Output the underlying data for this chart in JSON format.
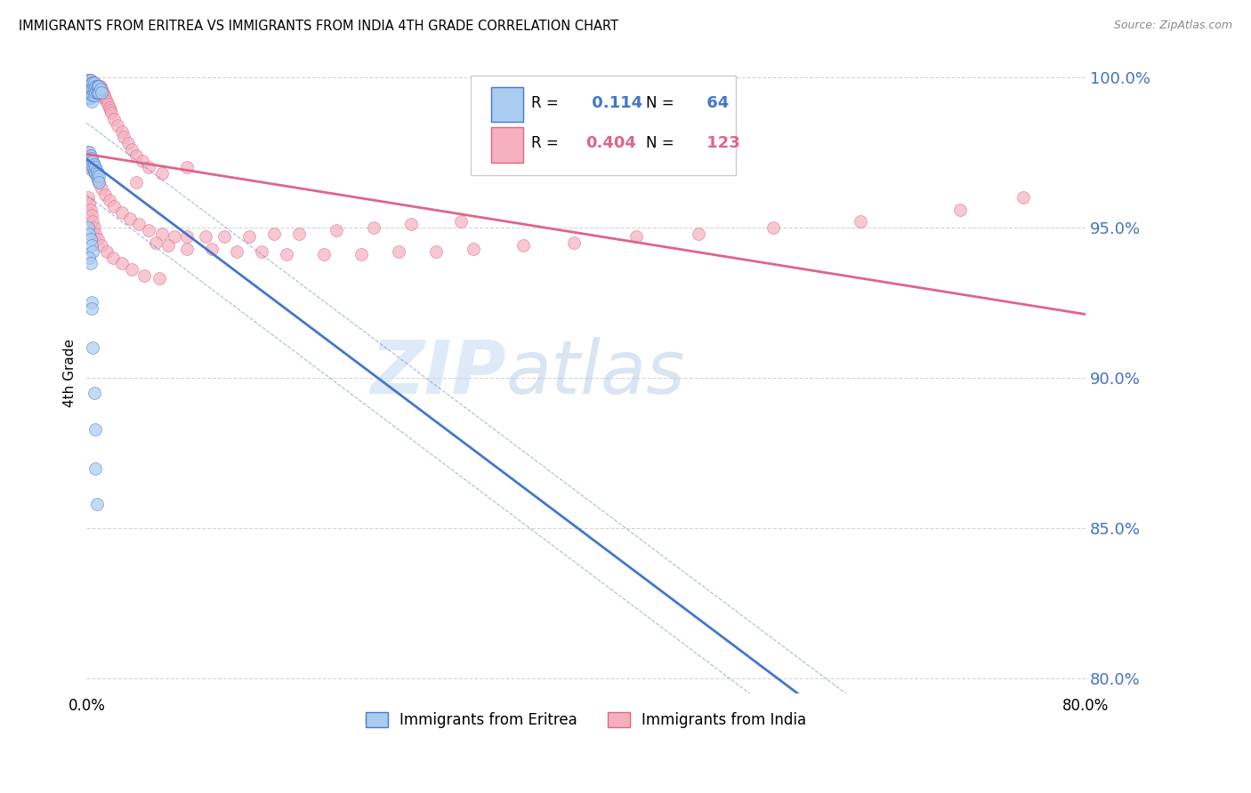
{
  "title": "IMMIGRANTS FROM ERITREA VS IMMIGRANTS FROM INDIA 4TH GRADE CORRELATION CHART",
  "source": "Source: ZipAtlas.com",
  "ylabel": "4th Grade",
  "xlim": [
    0.0,
    0.8
  ],
  "ylim": [
    0.795,
    1.008
  ],
  "xticks": [
    0.0,
    0.1,
    0.2,
    0.3,
    0.4,
    0.5,
    0.6,
    0.7,
    0.8
  ],
  "yticks": [
    0.8,
    0.85,
    0.9,
    0.95,
    1.0
  ],
  "ytick_labels": [
    "80.0%",
    "85.0%",
    "90.0%",
    "95.0%",
    "100.0%"
  ],
  "xtick_labels": [
    "0.0%",
    "",
    "",
    "",
    "",
    "",
    "",
    "",
    "80.0%"
  ],
  "series1_color": "#aaccf0",
  "series2_color": "#f5b0c0",
  "trendline1_color": "#4477cc",
  "trendline2_color": "#dd6688",
  "R1": 0.114,
  "N1": 64,
  "R2": 0.404,
  "N2": 123,
  "watermark_zip": "ZIP",
  "watermark_atlas": "atlas",
  "series1_name": "Immigrants from Eritrea",
  "series2_name": "Immigrants from India",
  "background_color": "#ffffff",
  "grid_color": "#cccccc",
  "eritrea_x": [
    0.001,
    0.001,
    0.002,
    0.002,
    0.002,
    0.002,
    0.003,
    0.003,
    0.003,
    0.003,
    0.004,
    0.004,
    0.004,
    0.004,
    0.005,
    0.005,
    0.005,
    0.006,
    0.006,
    0.006,
    0.007,
    0.007,
    0.008,
    0.008,
    0.009,
    0.009,
    0.01,
    0.01,
    0.011,
    0.012,
    0.001,
    0.001,
    0.002,
    0.002,
    0.003,
    0.003,
    0.004,
    0.004,
    0.005,
    0.005,
    0.006,
    0.006,
    0.007,
    0.007,
    0.008,
    0.008,
    0.009,
    0.009,
    0.01,
    0.01,
    0.001,
    0.002,
    0.003,
    0.004,
    0.005,
    0.002,
    0.003,
    0.004,
    0.004,
    0.005,
    0.006,
    0.007,
    0.007,
    0.008
  ],
  "eritrea_y": [
    0.998,
    0.996,
    0.999,
    0.997,
    0.995,
    0.993,
    0.999,
    0.997,
    0.995,
    0.993,
    0.998,
    0.996,
    0.994,
    0.992,
    0.998,
    0.996,
    0.994,
    0.998,
    0.996,
    0.994,
    0.997,
    0.995,
    0.997,
    0.995,
    0.997,
    0.995,
    0.997,
    0.995,
    0.996,
    0.995,
    0.972,
    0.97,
    0.975,
    0.973,
    0.974,
    0.972,
    0.973,
    0.971,
    0.972,
    0.97,
    0.971,
    0.969,
    0.97,
    0.968,
    0.969,
    0.967,
    0.968,
    0.966,
    0.967,
    0.965,
    0.95,
    0.948,
    0.946,
    0.944,
    0.942,
    0.94,
    0.938,
    0.925,
    0.923,
    0.91,
    0.895,
    0.883,
    0.87,
    0.858
  ],
  "india_x": [
    0.001,
    0.001,
    0.001,
    0.002,
    0.002,
    0.002,
    0.002,
    0.003,
    0.003,
    0.003,
    0.003,
    0.004,
    0.004,
    0.004,
    0.005,
    0.005,
    0.005,
    0.006,
    0.006,
    0.006,
    0.007,
    0.007,
    0.008,
    0.008,
    0.009,
    0.009,
    0.01,
    0.01,
    0.011,
    0.011,
    0.012,
    0.012,
    0.013,
    0.013,
    0.014,
    0.015,
    0.016,
    0.017,
    0.018,
    0.019,
    0.02,
    0.022,
    0.025,
    0.028,
    0.03,
    0.033,
    0.036,
    0.04,
    0.045,
    0.05,
    0.001,
    0.001,
    0.002,
    0.002,
    0.003,
    0.003,
    0.004,
    0.004,
    0.005,
    0.005,
    0.006,
    0.007,
    0.008,
    0.009,
    0.01,
    0.012,
    0.015,
    0.018,
    0.022,
    0.028,
    0.035,
    0.042,
    0.05,
    0.06,
    0.07,
    0.08,
    0.095,
    0.11,
    0.13,
    0.15,
    0.17,
    0.2,
    0.23,
    0.26,
    0.3,
    0.001,
    0.002,
    0.003,
    0.004,
    0.005,
    0.006,
    0.007,
    0.009,
    0.012,
    0.016,
    0.021,
    0.028,
    0.036,
    0.046,
    0.058,
    0.055,
    0.065,
    0.08,
    0.1,
    0.12,
    0.14,
    0.16,
    0.19,
    0.22,
    0.25,
    0.28,
    0.31,
    0.35,
    0.39,
    0.44,
    0.49,
    0.55,
    0.62,
    0.7,
    0.75,
    0.04,
    0.06,
    0.08
  ],
  "india_y": [
    0.999,
    0.998,
    0.997,
    0.999,
    0.998,
    0.997,
    0.996,
    0.999,
    0.998,
    0.997,
    0.996,
    0.998,
    0.997,
    0.996,
    0.998,
    0.997,
    0.996,
    0.998,
    0.997,
    0.996,
    0.997,
    0.996,
    0.997,
    0.996,
    0.997,
    0.996,
    0.997,
    0.995,
    0.997,
    0.995,
    0.996,
    0.994,
    0.995,
    0.993,
    0.994,
    0.993,
    0.992,
    0.991,
    0.99,
    0.989,
    0.988,
    0.986,
    0.984,
    0.982,
    0.98,
    0.978,
    0.976,
    0.974,
    0.972,
    0.97,
    0.975,
    0.973,
    0.974,
    0.972,
    0.973,
    0.971,
    0.972,
    0.97,
    0.971,
    0.969,
    0.97,
    0.968,
    0.967,
    0.966,
    0.965,
    0.963,
    0.961,
    0.959,
    0.957,
    0.955,
    0.953,
    0.951,
    0.949,
    0.948,
    0.947,
    0.947,
    0.947,
    0.947,
    0.947,
    0.948,
    0.948,
    0.949,
    0.95,
    0.951,
    0.952,
    0.96,
    0.958,
    0.956,
    0.954,
    0.952,
    0.95,
    0.948,
    0.946,
    0.944,
    0.942,
    0.94,
    0.938,
    0.936,
    0.934,
    0.933,
    0.945,
    0.944,
    0.943,
    0.943,
    0.942,
    0.942,
    0.941,
    0.941,
    0.941,
    0.942,
    0.942,
    0.943,
    0.944,
    0.945,
    0.947,
    0.948,
    0.95,
    0.952,
    0.956,
    0.96,
    0.965,
    0.968,
    0.97
  ]
}
